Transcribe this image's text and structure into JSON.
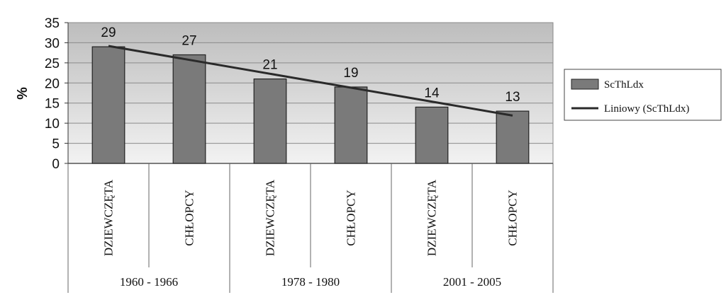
{
  "chart_data": {
    "type": "bar",
    "ylabel": "%",
    "ylim": [
      0,
      35
    ],
    "yticks": [
      0,
      5,
      10,
      15,
      20,
      25,
      30,
      35
    ],
    "grid": true,
    "legend_position": "right",
    "categories": [
      "DZIEWCZĘTA",
      "CHŁOPCY",
      "DZIEWCZĘTA",
      "CHŁOPCY",
      "DZIEWCZĘTA",
      "CHŁOPCY"
    ],
    "groups": [
      "1960 - 1966",
      "1978 - 1980",
      "2001 - 2005"
    ],
    "series": [
      {
        "name": "ScThLdx",
        "type": "bar",
        "values": [
          29,
          27,
          21,
          19,
          14,
          13
        ],
        "color": "#7a7a7a"
      },
      {
        "name": "Liniowy (ScThLdx)",
        "type": "trendline",
        "start": 29.2,
        "end": 11.9,
        "color": "#2a2a2a"
      }
    ],
    "data_labels": [
      "29",
      "27",
      "21",
      "19",
      "14",
      "13"
    ]
  }
}
